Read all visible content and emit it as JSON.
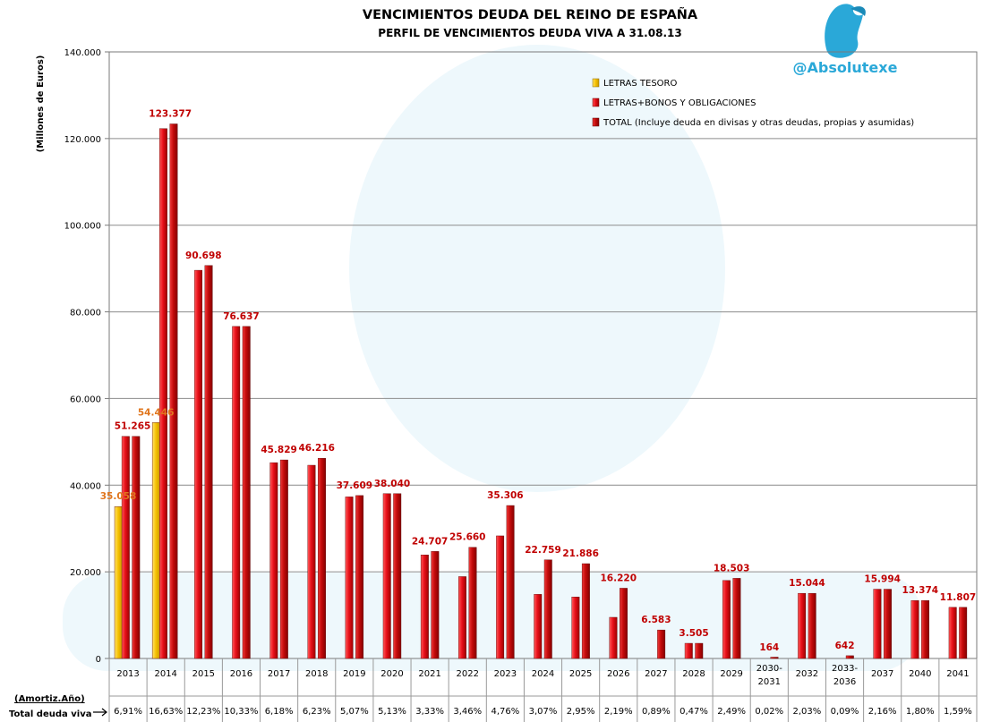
{
  "brand": {
    "handle": "@Absolutexe",
    "color": "#2aa8d8"
  },
  "colors": {
    "letras": "#f5c000",
    "letras_bonos": "#e8101a",
    "total": "#b80000",
    "label_orange": "#e0761e",
    "label_red": "#c00000"
  },
  "footer": {
    "row1_label": "(Amortiz.Año)",
    "row2_label": "Total deuda viva"
  },
  "chart_data": {
    "type": "bar",
    "title": "VENCIMIENTOS DEUDA DEL REINO DE ESPAÑA",
    "subtitle": "PERFIL DE VENCIMIENTOS DEUDA VIVA A 31.08.13",
    "ylabel": "(Millones de Euros)",
    "ylim": [
      0,
      140000
    ],
    "yticks": [
      "0",
      "20.000",
      "40.000",
      "60.000",
      "80.000",
      "100.000",
      "120.000",
      "140.000"
    ],
    "grid": true,
    "legend_position": "top-right",
    "categories": [
      "2013",
      "2014",
      "2015",
      "2016",
      "2017",
      "2018",
      "2019",
      "2020",
      "2021",
      "2022",
      "2023",
      "2024",
      "2025",
      "2026",
      "2027",
      "2028",
      "2029",
      "2030-2031",
      "2032",
      "2033-2036",
      "2037",
      "2040",
      "2041"
    ],
    "series": [
      {
        "name": "LETRAS TESORO",
        "values": [
          35058,
          54446,
          null,
          null,
          null,
          null,
          null,
          null,
          null,
          null,
          null,
          null,
          null,
          null,
          null,
          null,
          null,
          null,
          null,
          null,
          null,
          null,
          null
        ]
      },
      {
        "name": "LETRAS+BONOS Y OBLIGACIONES",
        "values": [
          51265,
          122300,
          89600,
          76637,
          45200,
          44600,
          37300,
          38040,
          23900,
          18900,
          28300,
          14800,
          14200,
          9500,
          null,
          3505,
          18000,
          null,
          15044,
          null,
          15994,
          13374,
          11807
        ]
      },
      {
        "name": "TOTAL (Incluye deuda en divisas y otras deudas, propias y asumidas)",
        "values": [
          51265,
          123377,
          90698,
          76637,
          45829,
          46216,
          37609,
          38040,
          24707,
          25660,
          35306,
          22759,
          21886,
          16220,
          6583,
          3505,
          18503,
          164,
          15044,
          642,
          15994,
          13374,
          11807
        ]
      }
    ],
    "data_labels": {
      "letras": [
        "35.058",
        "54.446"
      ],
      "total": [
        "51.265",
        "123.377",
        "90.698",
        "76.637",
        "45.829",
        "46.216",
        "37.609",
        "38.040",
        "24.707",
        "25.660",
        "35.306",
        "22.759",
        "21.886",
        "16.220",
        "6.583",
        "3.505",
        "18.503",
        "164",
        "15.044",
        "642",
        "15.994",
        "13.374",
        "11.807"
      ]
    },
    "category_labels": [
      [
        "2013"
      ],
      [
        "2014"
      ],
      [
        "2015"
      ],
      [
        "2016"
      ],
      [
        "2017"
      ],
      [
        "2018"
      ],
      [
        "2019"
      ],
      [
        "2020"
      ],
      [
        "2021"
      ],
      [
        "2022"
      ],
      [
        "2023"
      ],
      [
        "2024"
      ],
      [
        "2025"
      ],
      [
        "2026"
      ],
      [
        "2027"
      ],
      [
        "2028"
      ],
      [
        "2029"
      ],
      [
        "2030-",
        "2031"
      ],
      [
        "2032"
      ],
      [
        "2033-",
        "2036"
      ],
      [
        "2037"
      ],
      [
        "2040"
      ],
      [
        "2041"
      ]
    ],
    "total_percent": [
      "6,91%",
      "16,63%",
      "12,23%",
      "10,33%",
      "6,18%",
      "6,23%",
      "5,07%",
      "5,13%",
      "3,33%",
      "3,46%",
      "4,76%",
      "3,07%",
      "2,95%",
      "2,19%",
      "0,89%",
      "0,47%",
      "2,49%",
      "0,02%",
      "2,03%",
      "0,09%",
      "2,16%",
      "1,80%",
      "1,59%"
    ]
  }
}
